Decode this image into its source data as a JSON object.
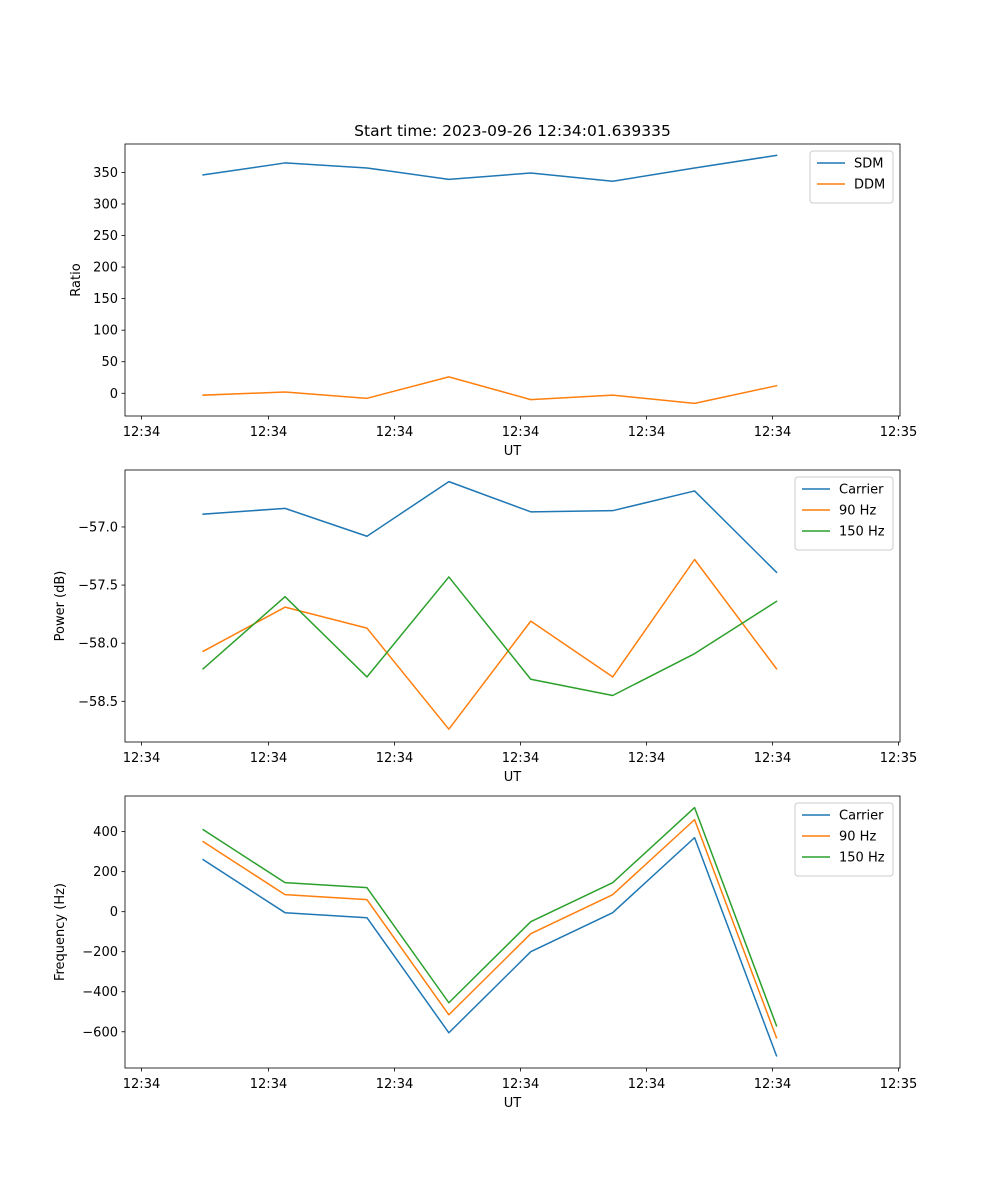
{
  "figure": {
    "title": "Start time: 2023-09-26 12:34:01.639335"
  },
  "chart_data": [
    {
      "type": "line",
      "title": "Start time: 2023-09-26 12:34:01.639335",
      "xlabel": "UT",
      "ylabel": "Ratio",
      "x_tick_labels": [
        "12:34",
        "12:34",
        "12:34",
        "12:34",
        "12:34",
        "12:34",
        "12:35"
      ],
      "x": [
        0.5,
        1.15,
        1.8,
        2.45,
        3.1,
        3.75,
        4.4,
        5.05
      ],
      "xlim": [
        -0.12,
        6.03
      ],
      "y_ticks": [
        0,
        50,
        100,
        150,
        200,
        250,
        300,
        350
      ],
      "ylim": [
        -36,
        395
      ],
      "legend_position": "upper right",
      "series": [
        {
          "name": "SDM",
          "color": "#1f77b4",
          "values": [
            346,
            365,
            357,
            339,
            349,
            336,
            357,
            377
          ]
        },
        {
          "name": "DDM",
          "color": "#ff7f0e",
          "values": [
            -3,
            2,
            -8,
            26,
            -10,
            -3,
            -16,
            12
          ]
        }
      ]
    },
    {
      "type": "line",
      "xlabel": "UT",
      "ylabel": "Power (dB)",
      "x_tick_labels": [
        "12:34",
        "12:34",
        "12:34",
        "12:34",
        "12:34",
        "12:34",
        "12:35"
      ],
      "x": [
        0.5,
        1.15,
        1.8,
        2.45,
        3.1,
        3.75,
        4.4,
        5.05
      ],
      "xlim": [
        -0.12,
        6.03
      ],
      "y_ticks": [
        -58.5,
        -58.0,
        -57.5,
        -57.0
      ],
      "y_tick_labels": [
        "−58.5",
        "−58.0",
        "−57.5",
        "−57.0"
      ],
      "ylim": [
        -58.85,
        -56.51
      ],
      "legend_position": "upper right",
      "series": [
        {
          "name": "Carrier",
          "color": "#1f77b4",
          "values": [
            -56.89,
            -56.84,
            -57.08,
            -56.61,
            -56.87,
            -56.86,
            -56.69,
            -57.39
          ]
        },
        {
          "name": "90 Hz",
          "color": "#ff7f0e",
          "values": [
            -58.07,
            -57.69,
            -57.87,
            -58.74,
            -57.81,
            -58.29,
            -57.28,
            -58.22
          ]
        },
        {
          "name": "150 Hz",
          "color": "#2ca02c",
          "values": [
            -58.22,
            -57.6,
            -58.29,
            -57.43,
            -58.31,
            -58.45,
            -58.09,
            -57.64
          ]
        }
      ]
    },
    {
      "type": "line",
      "xlabel": "UT",
      "ylabel": "Frequency (Hz)",
      "x_tick_labels": [
        "12:34",
        "12:34",
        "12:34",
        "12:34",
        "12:34",
        "12:34",
        "12:35"
      ],
      "x": [
        0.5,
        1.15,
        1.8,
        2.45,
        3.1,
        3.75,
        4.4,
        5.05
      ],
      "xlim": [
        -0.12,
        6.03
      ],
      "y_ticks": [
        -600,
        -400,
        -200,
        0,
        200,
        400
      ],
      "y_tick_labels": [
        "−600",
        "−400",
        "−200",
        "0",
        "200",
        "400"
      ],
      "ylim": [
        -781,
        578
      ],
      "legend_position": "upper right",
      "series": [
        {
          "name": "Carrier",
          "color": "#1f77b4",
          "values": [
            260,
            -5,
            -30,
            -605,
            -200,
            -5,
            370,
            -720
          ]
        },
        {
          "name": "90 Hz",
          "color": "#ff7f0e",
          "values": [
            350,
            85,
            60,
            -515,
            -110,
            85,
            460,
            -630
          ]
        },
        {
          "name": "150 Hz",
          "color": "#2ca02c",
          "values": [
            410,
            145,
            120,
            -455,
            -50,
            145,
            520,
            -570
          ]
        }
      ]
    }
  ]
}
